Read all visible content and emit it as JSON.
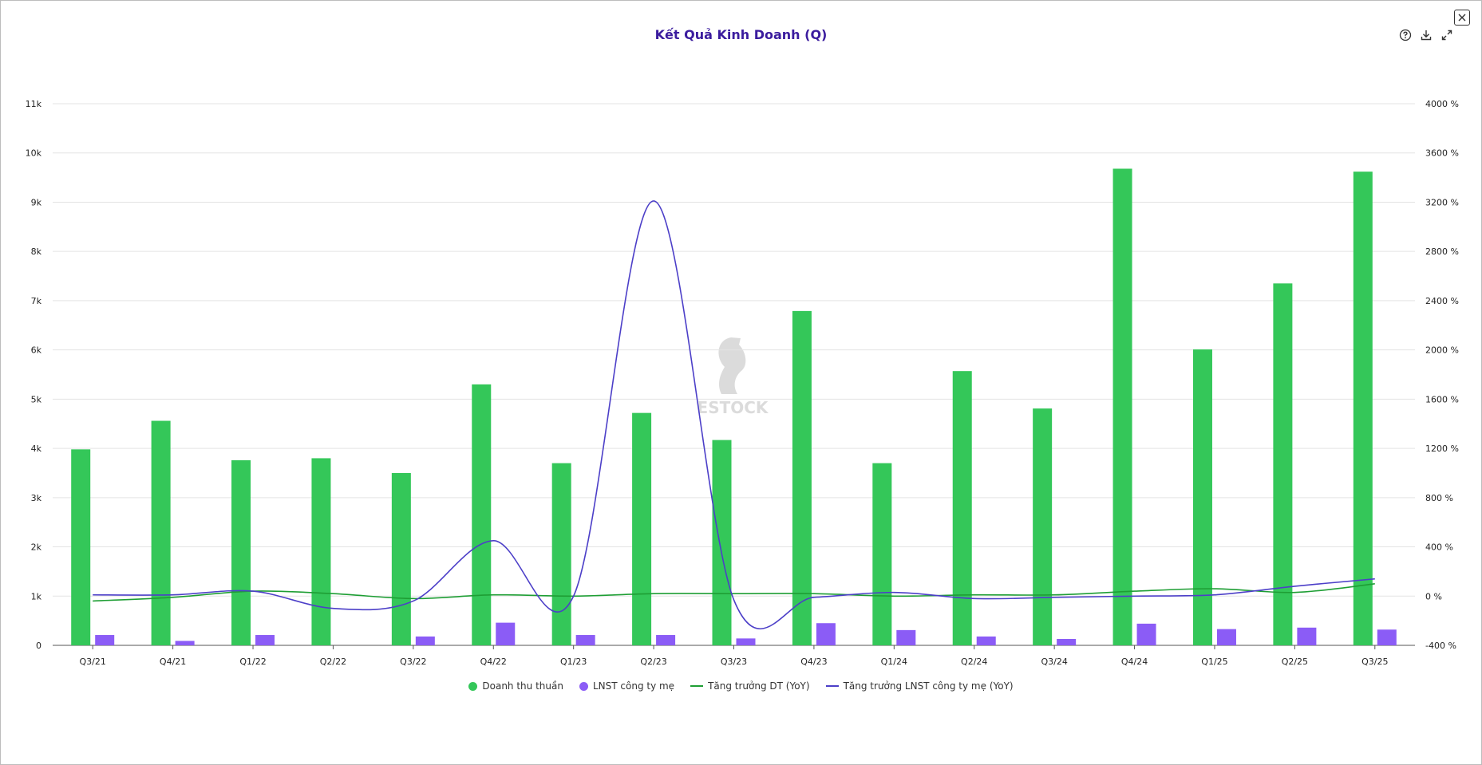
{
  "window": {
    "title": "Kết Quả Kinh Doanh (Q)"
  },
  "toolbar": {
    "help_icon": "help-circle-icon",
    "download_icon": "download-icon",
    "expand_icon": "expand-icon",
    "close_icon": "close-icon"
  },
  "watermark": {
    "text": "ESTOCK"
  },
  "colors": {
    "revenue": "#34c759",
    "profit": "#8b5cf6",
    "revenue_growth": "#1e9e34",
    "profit_growth": "#4c3fc8",
    "title": "#3b1c9e"
  },
  "chart_data": {
    "type": "bar",
    "title": "Kết Quả Kinh Doanh (Q)",
    "categories": [
      "Q3/21",
      "Q4/21",
      "Q1/22",
      "Q2/22",
      "Q3/22",
      "Q4/22",
      "Q1/23",
      "Q2/23",
      "Q3/23",
      "Q4/23",
      "Q1/24",
      "Q2/24",
      "Q3/24",
      "Q4/24",
      "Q1/25",
      "Q2/25",
      "Q3/25"
    ],
    "y_left": {
      "min": 0,
      "max": 11000,
      "ticks": [
        0,
        1000,
        2000,
        3000,
        4000,
        5000,
        6000,
        7000,
        8000,
        9000,
        10000,
        11000
      ],
      "tick_labels": [
        "0",
        "1k",
        "2k",
        "3k",
        "4k",
        "5k",
        "6k",
        "7k",
        "8k",
        "9k",
        "10k",
        "11k"
      ]
    },
    "y_right": {
      "min": -400,
      "max": 4000,
      "ticks": [
        -400,
        0,
        400,
        800,
        1200,
        1600,
        2000,
        2400,
        2800,
        3200,
        3600,
        4000
      ],
      "tick_labels": [
        "-400 %",
        "0 %",
        "400 %",
        "800 %",
        "1200 %",
        "1600 %",
        "2000 %",
        "2400 %",
        "2800 %",
        "3200 %",
        "3600 %",
        "4000 %"
      ]
    },
    "grid": true,
    "legend_position": "bottom-center",
    "series": [
      {
        "name": "Doanh thu thuần",
        "type": "bar",
        "axis": "left",
        "values": [
          3980,
          4560,
          3760,
          3800,
          3500,
          5300,
          3700,
          4720,
          4170,
          6790,
          3700,
          5570,
          4810,
          9680,
          6010,
          7350,
          9620
        ]
      },
      {
        "name": "LNST công ty mẹ",
        "type": "bar",
        "axis": "left",
        "values": [
          210,
          90,
          210,
          0,
          180,
          460,
          210,
          210,
          140,
          450,
          310,
          180,
          130,
          440,
          330,
          360,
          320
        ]
      },
      {
        "name": "Tăng trưởng DT (YoY)",
        "type": "line",
        "axis": "right",
        "values": [
          -40,
          -10,
          40,
          20,
          -20,
          10,
          0,
          20,
          20,
          20,
          0,
          10,
          10,
          40,
          60,
          30,
          100
        ]
      },
      {
        "name": "Tăng trưởng LNST công ty mẹ (YoY)",
        "type": "line",
        "axis": "right",
        "values": [
          10,
          10,
          40,
          -100,
          -40,
          450,
          0,
          3210,
          -30,
          -10,
          30,
          -20,
          -10,
          0,
          10,
          80,
          140
        ]
      }
    ]
  }
}
